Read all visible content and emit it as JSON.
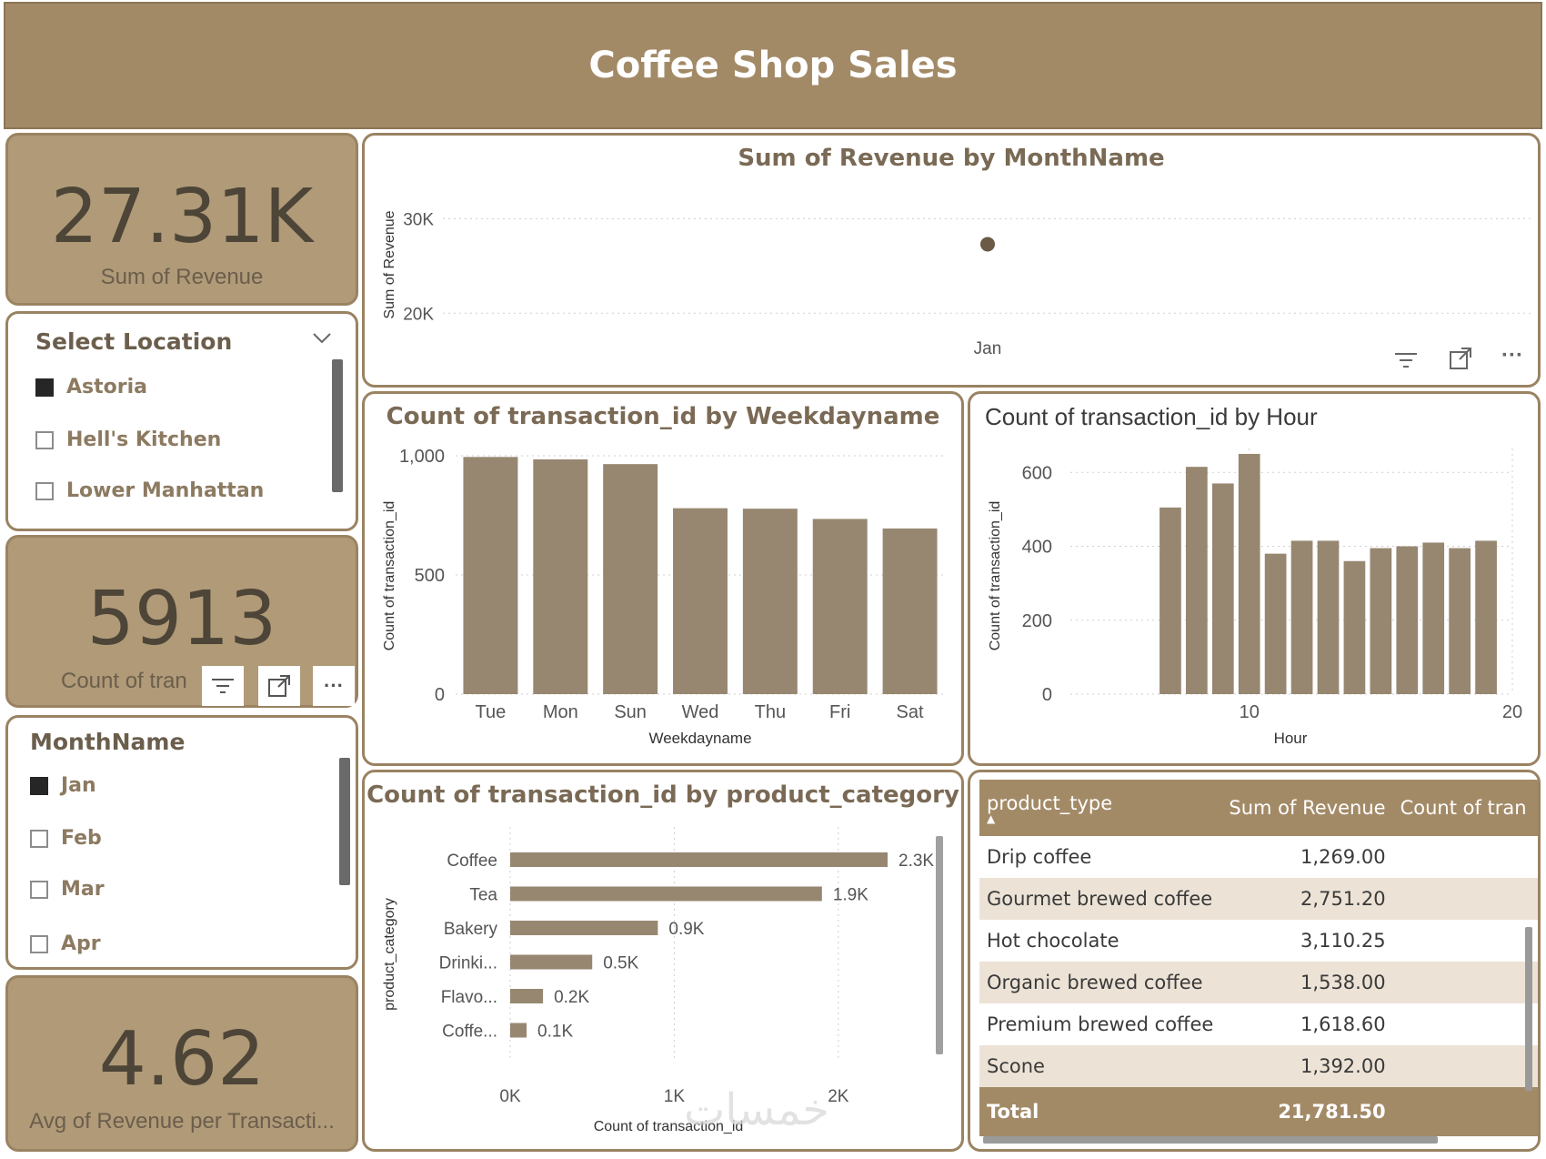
{
  "header": {
    "title": "Coffee Shop Sales"
  },
  "colors": {
    "brand": "#a38a67",
    "kpi_bg": "#b09a78",
    "bar": "#978771",
    "text_dark": "#4d4537"
  },
  "kpis": {
    "revenue": {
      "value": "27.31K",
      "label": "Sum of Revenue"
    },
    "transactions": {
      "value": "5913",
      "label": "Count of tran"
    },
    "avg_revenue": {
      "value": "4.62",
      "label": "Avg of Revenue per Transacti..."
    }
  },
  "location_slicer": {
    "title": "Select Location",
    "items": [
      {
        "label": "Astoria",
        "checked": true
      },
      {
        "label": "Hell's Kitchen",
        "checked": false
      },
      {
        "label": "Lower Manhattan",
        "checked": false
      }
    ]
  },
  "month_slicer": {
    "title": "MonthName",
    "items": [
      {
        "label": "Jan",
        "checked": true
      },
      {
        "label": "Feb",
        "checked": false
      },
      {
        "label": "Mar",
        "checked": false
      },
      {
        "label": "Apr",
        "checked": false
      }
    ]
  },
  "icons": {
    "filter": "filter-icon",
    "focus": "focus-mode-icon",
    "more": "more-options-icon"
  },
  "chart_data": [
    {
      "id": "revenue_by_month",
      "type": "scatter",
      "title": "Sum of Revenue by MonthName",
      "ylabel": "Sum of Revenue",
      "xlabel": "",
      "categories": [
        "Jan"
      ],
      "values": [
        27310
      ],
      "yticks": [
        20000,
        30000
      ],
      "ytick_labels": [
        "20K",
        "30K"
      ],
      "ylim": [
        18000,
        31500
      ],
      "grid": true
    },
    {
      "id": "tx_by_weekday",
      "type": "bar",
      "title": "Count of transaction_id by Weekdayname",
      "xlabel": "Weekdayname",
      "ylabel": "Count of transaction_id",
      "categories": [
        "Tue",
        "Mon",
        "Sun",
        "Wed",
        "Thu",
        "Fri",
        "Sat"
      ],
      "values": [
        995,
        985,
        965,
        780,
        778,
        735,
        695
      ],
      "yticks": [
        0,
        500,
        1000
      ],
      "ytick_labels": [
        "0",
        "500",
        "1,000"
      ],
      "ylim": [
        0,
        1000
      ],
      "grid": true
    },
    {
      "id": "tx_by_hour",
      "type": "bar",
      "title": "Count of transaction_id by Hour",
      "xlabel": "Hour",
      "ylabel": "Count of transaction_id",
      "x": [
        7,
        8,
        9,
        10,
        11,
        12,
        13,
        14,
        15,
        16,
        17,
        18,
        19
      ],
      "values": [
        505,
        615,
        570,
        650,
        380,
        415,
        415,
        360,
        395,
        400,
        410,
        395,
        415
      ],
      "xticks": [
        10,
        20
      ],
      "yticks": [
        0,
        200,
        400,
        600
      ],
      "xlim": [
        3.2,
        20
      ],
      "ylim": [
        0,
        640
      ],
      "grid": true
    },
    {
      "id": "tx_by_category",
      "type": "bar",
      "orientation": "horizontal",
      "title": "Count of transaction_id by product_category",
      "xlabel": "Count of transaction_id",
      "ylabel": "product_category",
      "categories": [
        "Coffee",
        "Tea",
        "Bakery",
        "Drinki...",
        "Flavo...",
        "Coffe..."
      ],
      "values": [
        2300,
        1900,
        900,
        500,
        200,
        100
      ],
      "data_labels": [
        "2.3K",
        "1.9K",
        "0.9K",
        "0.5K",
        "0.2K",
        "0.1K"
      ],
      "xticks": [
        0,
        1000,
        2000
      ],
      "xtick_labels": [
        "0K",
        "1K",
        "2K"
      ],
      "xlim": [
        0,
        2300
      ],
      "grid": true
    },
    {
      "id": "revenue_table",
      "type": "table",
      "columns": [
        "product_type",
        "Sum of Revenue",
        "Count of tran"
      ],
      "rows": [
        {
          "product_type": "Drip coffee",
          "revenue": "1,269.00"
        },
        {
          "product_type": "Gourmet brewed coffee",
          "revenue": "2,751.20"
        },
        {
          "product_type": "Hot chocolate",
          "revenue": "3,110.25"
        },
        {
          "product_type": "Organic brewed coffee",
          "revenue": "1,538.00"
        },
        {
          "product_type": "Premium brewed coffee",
          "revenue": "1,618.60"
        },
        {
          "product_type": "Scone",
          "revenue": "1,392.00"
        }
      ],
      "total": {
        "label": "Total",
        "revenue": "21,781.50"
      }
    }
  ],
  "watermark": "خمسات"
}
